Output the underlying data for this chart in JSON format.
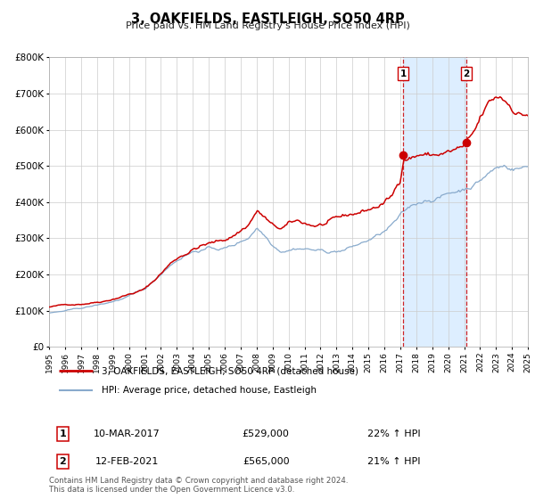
{
  "title": "3, OAKFIELDS, EASTLEIGH, SO50 4RP",
  "subtitle": "Price paid vs. HM Land Registry's House Price Index (HPI)",
  "legend_label_red": "3, OAKFIELDS, EASTLEIGH, SO50 4RP (detached house)",
  "legend_label_blue": "HPI: Average price, detached house, Eastleigh",
  "marker1_date": 2017.19,
  "marker1_price_y": 529000,
  "marker1_text": "10-MAR-2017",
  "marker1_price_str": "£529,000",
  "marker1_pct": "22% ↑ HPI",
  "marker2_date": 2021.12,
  "marker2_price_y": 565000,
  "marker2_text": "12-FEB-2021",
  "marker2_price_str": "£565,000",
  "marker2_pct": "21% ↑ HPI",
  "shade_start": 2017.19,
  "shade_end": 2021.12,
  "xmin": 1995,
  "xmax": 2025,
  "ymin": 0,
  "ymax": 800000,
  "yticks": [
    0,
    100000,
    200000,
    300000,
    400000,
    500000,
    600000,
    700000,
    800000
  ],
  "copyright_text": "Contains HM Land Registry data © Crown copyright and database right 2024.\nThis data is licensed under the Open Government Licence v3.0.",
  "red_color": "#cc0000",
  "blue_color": "#88aacc",
  "shade_color": "#ddeeff",
  "grid_color": "#cccccc",
  "red_key": [
    [
      1995.0,
      110000
    ],
    [
      1996.0,
      115000
    ],
    [
      1997.0,
      120000
    ],
    [
      1998.0,
      128000
    ],
    [
      1998.5,
      133000
    ],
    [
      1999.0,
      140000
    ],
    [
      1999.5,
      148000
    ],
    [
      2000.0,
      155000
    ],
    [
      2000.5,
      162000
    ],
    [
      2001.0,
      170000
    ],
    [
      2001.5,
      190000
    ],
    [
      2002.0,
      215000
    ],
    [
      2002.5,
      240000
    ],
    [
      2003.0,
      260000
    ],
    [
      2003.5,
      275000
    ],
    [
      2004.0,
      290000
    ],
    [
      2004.5,
      300000
    ],
    [
      2005.0,
      305000
    ],
    [
      2005.5,
      308000
    ],
    [
      2006.0,
      315000
    ],
    [
      2006.5,
      328000
    ],
    [
      2007.0,
      345000
    ],
    [
      2007.5,
      365000
    ],
    [
      2008.0,
      405000
    ],
    [
      2008.5,
      385000
    ],
    [
      2009.0,
      355000
    ],
    [
      2009.5,
      345000
    ],
    [
      2010.0,
      355000
    ],
    [
      2010.5,
      360000
    ],
    [
      2011.0,
      355000
    ],
    [
      2011.5,
      350000
    ],
    [
      2012.0,
      352000
    ],
    [
      2012.5,
      355000
    ],
    [
      2013.0,
      358000
    ],
    [
      2013.5,
      362000
    ],
    [
      2014.0,
      368000
    ],
    [
      2014.5,
      375000
    ],
    [
      2015.0,
      382000
    ],
    [
      2015.5,
      390000
    ],
    [
      2016.0,
      402000
    ],
    [
      2016.5,
      418000
    ],
    [
      2017.0,
      465000
    ],
    [
      2017.19,
      529000
    ],
    [
      2017.5,
      535000
    ],
    [
      2018.0,
      542000
    ],
    [
      2018.3,
      548000
    ],
    [
      2018.6,
      545000
    ],
    [
      2019.0,
      542000
    ],
    [
      2019.3,
      545000
    ],
    [
      2019.6,
      548000
    ],
    [
      2020.0,
      550000
    ],
    [
      2020.3,
      552000
    ],
    [
      2020.6,
      555000
    ],
    [
      2021.0,
      558000
    ],
    [
      2021.12,
      565000
    ],
    [
      2021.4,
      572000
    ],
    [
      2021.7,
      590000
    ],
    [
      2022.0,
      618000
    ],
    [
      2022.3,
      640000
    ],
    [
      2022.6,
      658000
    ],
    [
      2023.0,
      668000
    ],
    [
      2023.3,
      672000
    ],
    [
      2023.6,
      662000
    ],
    [
      2024.0,
      650000
    ],
    [
      2024.3,
      642000
    ],
    [
      2024.6,
      636000
    ],
    [
      2025.0,
      638000
    ]
  ],
  "blue_key": [
    [
      1995.0,
      93000
    ],
    [
      1996.0,
      98000
    ],
    [
      1997.0,
      104000
    ],
    [
      1998.0,
      112000
    ],
    [
      1998.5,
      116000
    ],
    [
      1999.0,
      122000
    ],
    [
      1999.5,
      128000
    ],
    [
      2000.0,
      136000
    ],
    [
      2000.5,
      143000
    ],
    [
      2001.0,
      152000
    ],
    [
      2001.5,
      170000
    ],
    [
      2002.0,
      192000
    ],
    [
      2002.5,
      215000
    ],
    [
      2003.0,
      232000
    ],
    [
      2003.5,
      248000
    ],
    [
      2004.0,
      258000
    ],
    [
      2004.5,
      264000
    ],
    [
      2005.0,
      268000
    ],
    [
      2005.5,
      266000
    ],
    [
      2006.0,
      268000
    ],
    [
      2006.5,
      274000
    ],
    [
      2007.0,
      285000
    ],
    [
      2007.5,
      298000
    ],
    [
      2008.0,
      328000
    ],
    [
      2008.5,
      308000
    ],
    [
      2009.0,
      285000
    ],
    [
      2009.5,
      272000
    ],
    [
      2010.0,
      278000
    ],
    [
      2010.5,
      285000
    ],
    [
      2011.0,
      285000
    ],
    [
      2011.5,
      282000
    ],
    [
      2012.0,
      278000
    ],
    [
      2012.5,
      275000
    ],
    [
      2013.0,
      278000
    ],
    [
      2013.5,
      282000
    ],
    [
      2014.0,
      290000
    ],
    [
      2014.5,
      298000
    ],
    [
      2015.0,
      308000
    ],
    [
      2015.5,
      318000
    ],
    [
      2016.0,
      330000
    ],
    [
      2016.5,
      348000
    ],
    [
      2017.0,
      368000
    ],
    [
      2017.5,
      385000
    ],
    [
      2018.0,
      398000
    ],
    [
      2018.5,
      410000
    ],
    [
      2019.0,
      418000
    ],
    [
      2019.5,
      425000
    ],
    [
      2020.0,
      432000
    ],
    [
      2020.5,
      440000
    ],
    [
      2021.0,
      448000
    ],
    [
      2021.12,
      455000
    ],
    [
      2021.5,
      462000
    ],
    [
      2022.0,
      478000
    ],
    [
      2022.5,
      498000
    ],
    [
      2023.0,
      512000
    ],
    [
      2023.5,
      518000
    ],
    [
      2024.0,
      515000
    ],
    [
      2024.5,
      518000
    ],
    [
      2025.0,
      520000
    ]
  ]
}
